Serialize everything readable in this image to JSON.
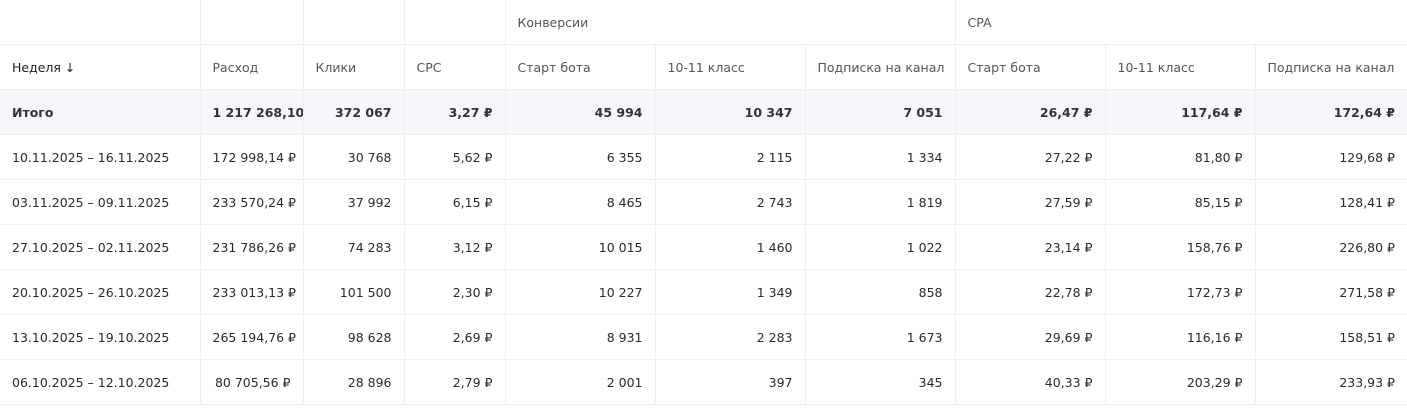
{
  "groups": {
    "conversions": "Конверсии",
    "cpa": "CPA"
  },
  "columns": [
    "Неделя ↓",
    "Расход",
    "Клики",
    "CPC",
    "Старт бота",
    "10-11 класс",
    "Подписка на канал",
    "Старт бота",
    "10-11 класс",
    "Подписка на канал"
  ],
  "total": [
    "Итого",
    "1 217 268,10 ₽",
    "372 067",
    "3,27 ₽",
    "45 994",
    "10 347",
    "7 051",
    "26,47 ₽",
    "117,64 ₽",
    "172,64 ₽"
  ],
  "rows": [
    [
      "10.11.2025 – 16.11.2025",
      "172 998,14 ₽",
      "30 768",
      "5,62 ₽",
      "6 355",
      "2 115",
      "1 334",
      "27,22 ₽",
      "81,80 ₽",
      "129,68 ₽"
    ],
    [
      "03.11.2025 – 09.11.2025",
      "233 570,24 ₽",
      "37 992",
      "6,15 ₽",
      "8 465",
      "2 743",
      "1 819",
      "27,59 ₽",
      "85,15 ₽",
      "128,41 ₽"
    ],
    [
      "27.10.2025 – 02.11.2025",
      "231 786,26 ₽",
      "74 283",
      "3,12 ₽",
      "10 015",
      "1 460",
      "1 022",
      "23,14 ₽",
      "158,76 ₽",
      "226,80 ₽"
    ],
    [
      "20.10.2025 – 26.10.2025",
      "233 013,13 ₽",
      "101 500",
      "2,30 ₽",
      "10 227",
      "1 349",
      "858",
      "22,78 ₽",
      "172,73 ₽",
      "271,58 ₽"
    ],
    [
      "13.10.2025 – 19.10.2025",
      "265 194,76 ₽",
      "98 628",
      "2,69 ₽",
      "8 931",
      "2 283",
      "1 673",
      "29,69 ₽",
      "116,16 ₽",
      "158,51 ₽"
    ],
    [
      "06.10.2025 – 12.10.2025",
      "80 705,56 ₽",
      "28 896",
      "2,79 ₽",
      "2 001",
      "397",
      "345",
      "40,33 ₽",
      "203,29 ₽",
      "233,93 ₽"
    ]
  ]
}
